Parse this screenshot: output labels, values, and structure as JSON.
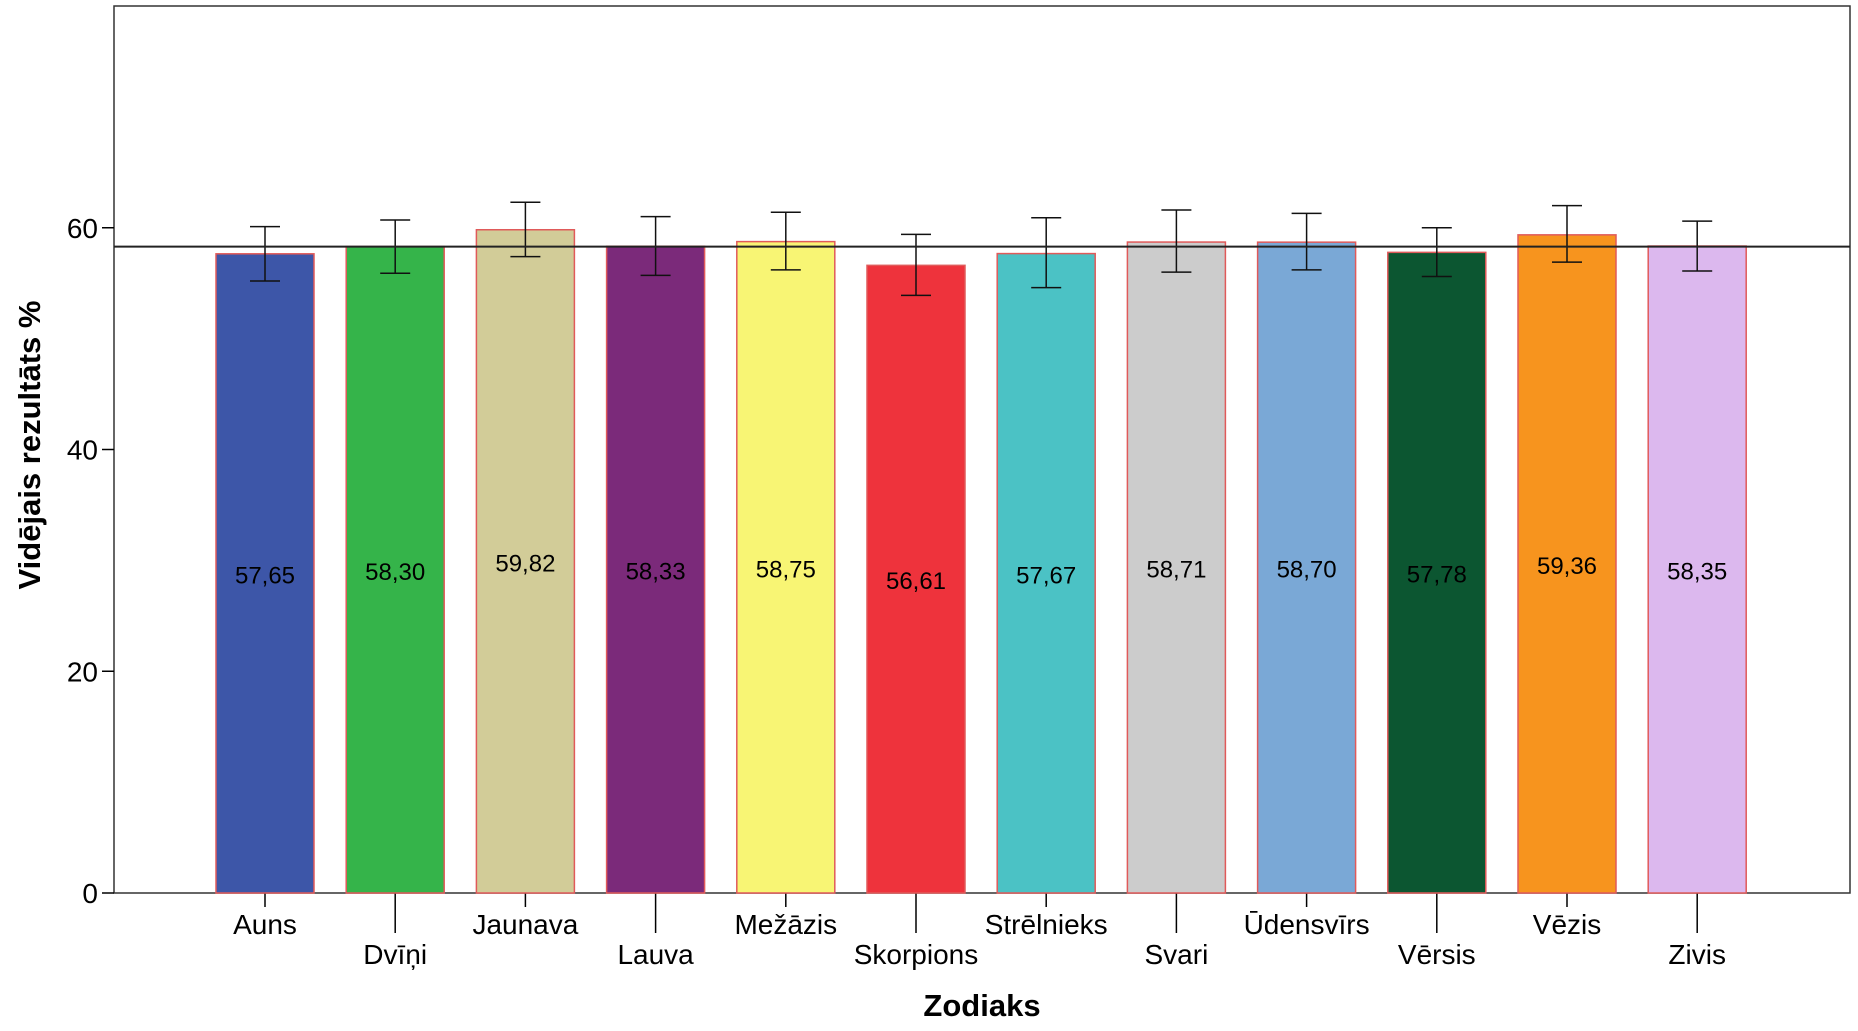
{
  "chart_data": {
    "type": "bar",
    "xlabel": "Zodiaks",
    "ylabel": "Vidējais rezultāts %",
    "ylim": [
      0,
      80
    ],
    "yticks": [
      0,
      20,
      40,
      60
    ],
    "grid": false,
    "reference_line": 58.3,
    "categories": [
      "Auns",
      "Dvīņi",
      "Jaunava",
      "Lauva",
      "Mežāzis",
      "Skorpions",
      "Strēlnieks",
      "Svari",
      "Ūdensvīrs",
      "Vērsis",
      "Vēzis",
      "Zivis"
    ],
    "values": [
      57.65,
      58.3,
      59.82,
      58.33,
      58.75,
      56.61,
      57.67,
      58.71,
      58.7,
      57.78,
      59.36,
      58.35
    ],
    "value_labels": [
      "57,65",
      "58,30",
      "59,82",
      "58,33",
      "58,75",
      "56,61",
      "57,67",
      "58,71",
      "58,70",
      "57,78",
      "59,36",
      "58,35"
    ],
    "error_bars": [
      [
        55.2,
        60.1
      ],
      [
        55.9,
        60.7
      ],
      [
        57.4,
        62.3
      ],
      [
        55.7,
        61.0
      ],
      [
        56.2,
        61.4
      ],
      [
        53.9,
        59.4
      ],
      [
        54.6,
        60.9
      ],
      [
        56.0,
        61.6
      ],
      [
        56.2,
        61.3
      ],
      [
        55.6,
        60.0
      ],
      [
        56.9,
        62.0
      ],
      [
        56.1,
        60.6
      ]
    ],
    "colors": [
      "#3d56a8",
      "#35b44a",
      "#d2cc98",
      "#7b2a7a",
      "#f8f574",
      "#ee333c",
      "#4bc2c5",
      "#cccccc",
      "#7aa8d6",
      "#0c5631",
      "#f7941e",
      "#dcb8ee"
    ],
    "bar_outline_color": "#e05a5a",
    "label_row": [
      "top",
      "bottom",
      "top",
      "bottom",
      "top",
      "bottom",
      "top",
      "bottom",
      "top",
      "bottom",
      "top",
      "bottom"
    ]
  }
}
